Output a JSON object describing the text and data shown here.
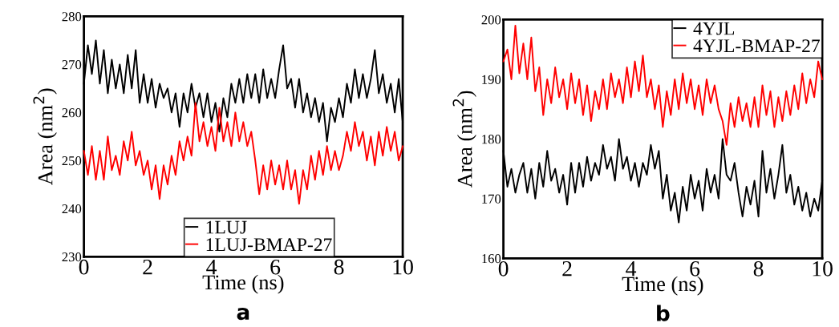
{
  "chart_data": [
    {
      "type": "line",
      "xlabel": "Time (ns)",
      "ylabel": "Area (nm$^{2}$)",
      "annotations": [
        "a"
      ],
      "x": [
        0,
        0.125,
        0.25,
        0.375,
        0.5,
        0.625,
        0.75,
        0.875,
        1,
        1.125,
        1.25,
        1.375,
        1.5,
        1.625,
        1.75,
        1.875,
        2,
        2.125,
        2.25,
        2.375,
        2.5,
        2.625,
        2.75,
        2.875,
        3,
        3.125,
        3.25,
        3.375,
        3.5,
        3.625,
        3.75,
        3.875,
        4,
        4.125,
        4.25,
        4.375,
        4.5,
        4.625,
        4.75,
        4.875,
        5,
        5.125,
        5.25,
        5.375,
        5.5,
        5.625,
        5.75,
        5.875,
        6,
        6.125,
        6.25,
        6.375,
        6.5,
        6.625,
        6.75,
        6.875,
        7,
        7.125,
        7.25,
        7.375,
        7.5,
        7.625,
        7.75,
        7.875,
        8,
        8.125,
        8.25,
        8.375,
        8.5,
        8.625,
        8.75,
        8.875,
        9,
        9.125,
        9.25,
        9.375,
        9.5,
        9.625,
        9.75,
        9.875,
        10
      ],
      "xlim": [
        0,
        10
      ],
      "xticks": [
        0,
        2,
        4,
        6,
        8,
        10
      ],
      "ylim": [
        230,
        280
      ],
      "yticks": [
        230,
        240,
        250,
        260,
        270,
        280
      ],
      "legend": "bottom",
      "grid": false,
      "series": [
        {
          "name": "1LUJ",
          "color": "#000000",
          "values": [
            266,
            274,
            268,
            275,
            266,
            273,
            264,
            271,
            265,
            270,
            264,
            272,
            265,
            273,
            262,
            268,
            262,
            267,
            261,
            266,
            263,
            265,
            260,
            264,
            257,
            264,
            260,
            266,
            261,
            264,
            259,
            264,
            258,
            262,
            256,
            263,
            259,
            266,
            262,
            267,
            262,
            268,
            263,
            268,
            262,
            269,
            263,
            267,
            263,
            269,
            274,
            265,
            267,
            261,
            267,
            260,
            264,
            259,
            263,
            258,
            262,
            254,
            261,
            258,
            263,
            259,
            266,
            262,
            269,
            263,
            268,
            263,
            267,
            273,
            264,
            268,
            262,
            266,
            260,
            267,
            258
          ]
        },
        {
          "name": "1LUJ-BMAP-27",
          "color": "#ff0000",
          "values": [
            252,
            247,
            253,
            246,
            252,
            246,
            255,
            248,
            251,
            247,
            254,
            250,
            256,
            249,
            252,
            247,
            250,
            244,
            249,
            242,
            249,
            245,
            251,
            247,
            254,
            250,
            255,
            251,
            262,
            254,
            258,
            253,
            257,
            252,
            261,
            254,
            258,
            253,
            260,
            254,
            258,
            253,
            256,
            250,
            243,
            249,
            244,
            250,
            245,
            249,
            244,
            250,
            244,
            248,
            241,
            248,
            244,
            251,
            246,
            252,
            247,
            253,
            248,
            252,
            248,
            251,
            256,
            252,
            258,
            253,
            256,
            250,
            255,
            249,
            256,
            251,
            257,
            252,
            256,
            250,
            253
          ]
        }
      ]
    },
    {
      "type": "line",
      "xlabel": "Time (ns)",
      "ylabel": "Area (nm$^{2}$)",
      "annotations": [
        "b"
      ],
      "x": [
        0,
        0.125,
        0.25,
        0.375,
        0.5,
        0.625,
        0.75,
        0.875,
        1,
        1.125,
        1.25,
        1.375,
        1.5,
        1.625,
        1.75,
        1.875,
        2,
        2.125,
        2.25,
        2.375,
        2.5,
        2.625,
        2.75,
        2.875,
        3,
        3.125,
        3.25,
        3.375,
        3.5,
        3.625,
        3.75,
        3.875,
        4,
        4.125,
        4.25,
        4.375,
        4.5,
        4.625,
        4.75,
        4.875,
        5,
        5.125,
        5.25,
        5.375,
        5.5,
        5.625,
        5.75,
        5.875,
        6,
        6.125,
        6.25,
        6.375,
        6.5,
        6.625,
        6.75,
        6.875,
        7,
        7.125,
        7.25,
        7.375,
        7.5,
        7.625,
        7.75,
        7.875,
        8,
        8.125,
        8.25,
        8.375,
        8.5,
        8.625,
        8.75,
        8.875,
        9,
        9.125,
        9.25,
        9.375,
        9.5,
        9.625,
        9.75,
        9.875,
        10
      ],
      "xlim": [
        0,
        10
      ],
      "xticks": [
        0,
        2,
        4,
        6,
        8,
        10
      ],
      "ylim": [
        160,
        200
      ],
      "yticks": [
        160,
        170,
        180,
        190,
        200
      ],
      "legend": "top right",
      "grid": false,
      "series": [
        {
          "name": "4YJL",
          "color": "#000000",
          "values": [
            178,
            172,
            175,
            171,
            174,
            176,
            171,
            175,
            170,
            176,
            172,
            178,
            173,
            175,
            171,
            174,
            169,
            176,
            171,
            176,
            172,
            177,
            173,
            176,
            174,
            179,
            175,
            177,
            173,
            180,
            175,
            177,
            173,
            176,
            172,
            176,
            174,
            179,
            175,
            178,
            170,
            174,
            168,
            171,
            166,
            172,
            168,
            174,
            170,
            173,
            168,
            175,
            171,
            174,
            170,
            180,
            174,
            173,
            176,
            171,
            167,
            172,
            169,
            173,
            167,
            178,
            171,
            175,
            170,
            174,
            179,
            171,
            174,
            169,
            172,
            168,
            171,
            167,
            170,
            168,
            173
          ]
        },
        {
          "name": "4YJL-BMAP-27",
          "color": "#ff0000",
          "values": [
            193,
            195,
            190,
            199,
            191,
            196,
            190,
            197,
            188,
            192,
            184,
            190,
            186,
            192,
            187,
            190,
            185,
            191,
            186,
            190,
            184,
            189,
            183,
            188,
            185,
            190,
            185,
            191,
            187,
            190,
            186,
            192,
            187,
            193,
            188,
            194,
            187,
            190,
            185,
            189,
            182,
            188,
            184,
            190,
            185,
            191,
            186,
            190,
            185,
            189,
            184,
            190,
            186,
            189,
            185,
            183,
            179,
            186,
            182,
            187,
            183,
            186,
            182,
            187,
            182,
            189,
            184,
            188,
            182,
            187,
            183,
            188,
            184,
            189,
            185,
            191,
            186,
            190,
            187,
            193,
            190
          ]
        }
      ]
    }
  ]
}
